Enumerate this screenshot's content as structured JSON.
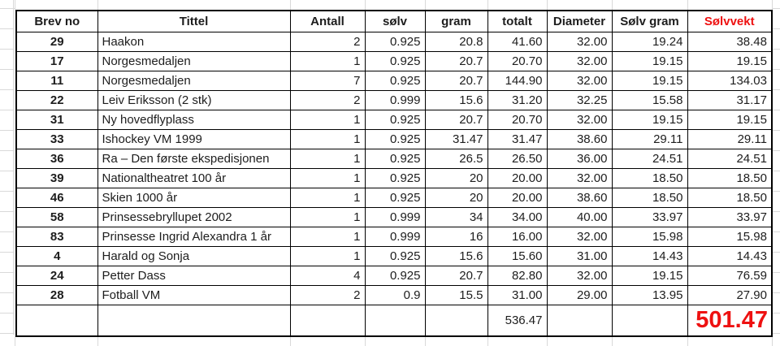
{
  "table": {
    "columns": [
      {
        "key": "brev_no",
        "label": "Brev no"
      },
      {
        "key": "tittel",
        "label": "Tittel"
      },
      {
        "key": "antall",
        "label": "Antall"
      },
      {
        "key": "solv",
        "label": "sølv"
      },
      {
        "key": "gram",
        "label": "gram"
      },
      {
        "key": "totalt",
        "label": "totalt"
      },
      {
        "key": "diameter",
        "label": "Diameter"
      },
      {
        "key": "solv_gram",
        "label": "Sølv gram"
      },
      {
        "key": "solvvekt",
        "label": "Sølvvekt"
      }
    ],
    "rows": [
      [
        "29",
        "Haakon",
        "2",
        "0.925",
        "20.8",
        "41.60",
        "32.00",
        "19.24",
        "38.48"
      ],
      [
        "17",
        "Norgesmedaljen",
        "1",
        "0.925",
        "20.7",
        "20.70",
        "32.00",
        "19.15",
        "19.15"
      ],
      [
        "11",
        "Norgesmedaljen",
        "7",
        "0.925",
        "20.7",
        "144.90",
        "32.00",
        "19.15",
        "134.03"
      ],
      [
        "22",
        "Leiv Eriksson (2 stk)",
        "2",
        "0.999",
        "15.6",
        "31.20",
        "32.25",
        "15.58",
        "31.17"
      ],
      [
        "31",
        "Ny hovedflyplass",
        "1",
        "0.925",
        "20.7",
        "20.70",
        "32.00",
        "19.15",
        "19.15"
      ],
      [
        "33",
        "Ishockey VM 1999",
        "1",
        "0.925",
        "31.47",
        "31.47",
        "38.60",
        "29.11",
        "29.11"
      ],
      [
        "36",
        "Ra – Den første ekspedisjonen",
        "1",
        "0.925",
        "26.5",
        "26.50",
        "36.00",
        "24.51",
        "24.51"
      ],
      [
        "39",
        "Nationaltheatret 100 år",
        "1",
        "0.925",
        "20",
        "20.00",
        "32.00",
        "18.50",
        "18.50"
      ],
      [
        "46",
        "Skien 1000 år",
        "1",
        "0.925",
        "20",
        "20.00",
        "38.60",
        "18.50",
        "18.50"
      ],
      [
        "58",
        "Prinsessebryllupet 2002",
        "1",
        "0.999",
        "34",
        "34.00",
        "40.00",
        "33.97",
        "33.97"
      ],
      [
        "83",
        "Prinsesse Ingrid Alexandra 1 år",
        "1",
        "0.999",
        "16",
        "16.00",
        "32.00",
        "15.98",
        "15.98"
      ],
      [
        "4",
        "Harald og Sonja",
        "1",
        "0.925",
        "15.6",
        "15.60",
        "31.00",
        "14.43",
        "14.43"
      ],
      [
        "24",
        "Petter Dass",
        "4",
        "0.925",
        "20.7",
        "82.80",
        "32.00",
        "19.15",
        "76.59"
      ],
      [
        "28",
        "Fotball VM",
        "2",
        "0.9",
        "15.5",
        "31.00",
        "29.00",
        "13.95",
        "27.90"
      ]
    ],
    "totals": {
      "totalt": "536.47",
      "solvvekt": "501.47"
    }
  },
  "colors": {
    "accent_red": "#ee1111",
    "text": "#1d1d1d",
    "border": "#000000",
    "gridline": "#d9d9d9"
  }
}
